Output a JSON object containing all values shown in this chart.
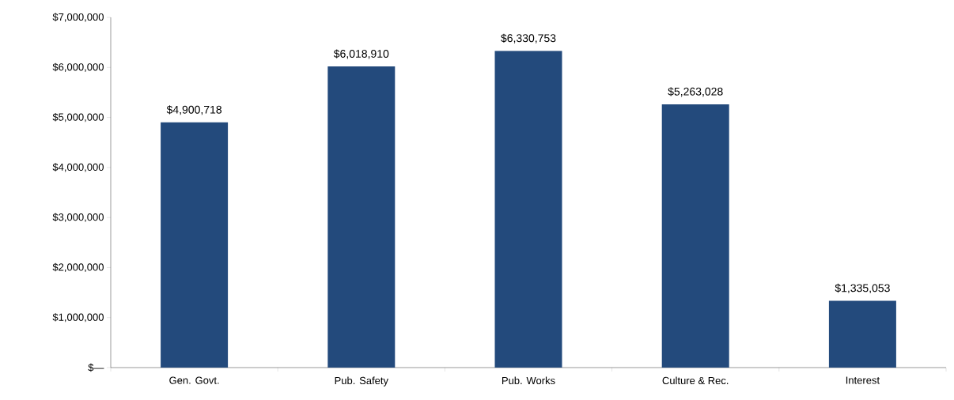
{
  "chart_data": {
    "type": "bar",
    "categories": [
      "Gen. Govt.",
      "Pub. Safety",
      "Pub. Works",
      "Culture & Rec.",
      "Interest"
    ],
    "values": [
      4900718,
      6018910,
      6330753,
      5263028,
      1335053
    ],
    "value_labels": [
      "$4,900,718",
      "$6,018,910",
      "$6,330,753",
      "$5,263,028",
      "$1,335,053"
    ],
    "color": "#234a7c",
    "ylim": [
      0,
      7000000
    ],
    "yticks": [
      {
        "value": 0,
        "label": "$—"
      },
      {
        "value": 1000000,
        "label": "$1,000,000"
      },
      {
        "value": 2000000,
        "label": "$2,000,000"
      },
      {
        "value": 3000000,
        "label": "$3,000,000"
      },
      {
        "value": 4000000,
        "label": "$4,000,000"
      },
      {
        "value": 5000000,
        "label": "$5,000,000"
      },
      {
        "value": 6000000,
        "label": "$6,000,000"
      },
      {
        "value": 7000000,
        "label": "$7,000,000"
      }
    ],
    "grid": false
  }
}
